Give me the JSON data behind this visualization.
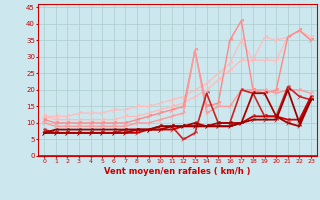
{
  "xlabel": "Vent moyen/en rafales ( km/h )",
  "bg_color": "#cce8ee",
  "grid_color": "#aacccc",
  "axis_color": "#cc0000",
  "label_color": "#cc0000",
  "xlim": [
    -0.5,
    23.5
  ],
  "ylim": [
    0,
    46
  ],
  "yticks": [
    0,
    5,
    10,
    15,
    20,
    25,
    30,
    35,
    40,
    45
  ],
  "xticks": [
    0,
    1,
    2,
    3,
    4,
    5,
    6,
    7,
    8,
    9,
    10,
    11,
    12,
    13,
    14,
    15,
    16,
    17,
    18,
    19,
    20,
    21,
    22,
    23
  ],
  "series": [
    {
      "x": [
        0,
        1,
        2,
        3,
        4,
        5,
        6,
        7,
        8,
        9,
        10,
        11,
        12,
        13,
        14,
        15,
        16,
        17,
        18,
        19,
        20,
        21,
        22,
        23
      ],
      "y": [
        12,
        12,
        12,
        13,
        13,
        13,
        14,
        14,
        15,
        15,
        16,
        17,
        18,
        20,
        22,
        25,
        28,
        35,
        29,
        36,
        35,
        36,
        38,
        36
      ],
      "color": "#ffbbbb",
      "lw": 0.9,
      "ms": 3.5
    },
    {
      "x": [
        0,
        1,
        2,
        3,
        4,
        5,
        6,
        7,
        8,
        9,
        10,
        11,
        12,
        13,
        14,
        15,
        16,
        17,
        18,
        19,
        20,
        21,
        22,
        23
      ],
      "y": [
        12,
        11,
        11,
        11,
        11,
        11,
        11,
        12,
        12,
        13,
        14,
        15,
        16,
        18,
        20,
        23,
        26,
        29,
        29,
        29,
        29,
        36,
        38,
        35
      ],
      "color": "#ffbbbb",
      "lw": 0.9,
      "ms": 3.5
    },
    {
      "x": [
        0,
        1,
        2,
        3,
        4,
        5,
        6,
        7,
        8,
        9,
        10,
        11,
        12,
        13,
        14,
        15,
        16,
        17,
        18,
        19,
        20,
        21,
        22,
        23
      ],
      "y": [
        11,
        10,
        10,
        10,
        10,
        10,
        10,
        10,
        11,
        12,
        13,
        14,
        15,
        32,
        15,
        16,
        35,
        41,
        20,
        19,
        20,
        36,
        38,
        35
      ],
      "color": "#ff8888",
      "lw": 1.0,
      "ms": 3.5
    },
    {
      "x": [
        0,
        1,
        2,
        3,
        4,
        5,
        6,
        7,
        8,
        9,
        10,
        11,
        12,
        13,
        14,
        15,
        16,
        17,
        18,
        19,
        20,
        21,
        22,
        23
      ],
      "y": [
        10,
        9,
        9,
        9,
        9,
        9,
        9,
        9,
        10,
        10,
        11,
        12,
        13,
        32,
        13,
        15,
        15,
        20,
        20,
        20,
        19,
        20,
        20,
        19
      ],
      "color": "#ff9999",
      "lw": 1.0,
      "ms": 3.0
    },
    {
      "x": [
        0,
        1,
        2,
        3,
        4,
        5,
        6,
        7,
        8,
        9,
        10,
        11,
        12,
        13,
        14,
        15,
        16,
        17,
        18,
        19,
        20,
        21,
        22,
        23
      ],
      "y": [
        8,
        7,
        7,
        7,
        7,
        7,
        7,
        8,
        8,
        8,
        9,
        9,
        5,
        7,
        19,
        10,
        10,
        20,
        19,
        12,
        12,
        21,
        18,
        17
      ],
      "color": "#cc2222",
      "lw": 1.2,
      "ms": 3.0
    },
    {
      "x": [
        0,
        1,
        2,
        3,
        4,
        5,
        6,
        7,
        8,
        9,
        10,
        11,
        12,
        13,
        14,
        15,
        16,
        17,
        18,
        19,
        20,
        21,
        22,
        23
      ],
      "y": [
        7,
        7,
        7,
        7,
        7,
        7,
        7,
        7,
        7,
        8,
        8,
        8,
        9,
        9,
        9,
        9,
        9,
        10,
        12,
        12,
        12,
        11,
        11,
        18
      ],
      "color": "#cc0000",
      "lw": 1.3,
      "ms": 3.0
    },
    {
      "x": [
        0,
        1,
        2,
        3,
        4,
        5,
        6,
        7,
        8,
        9,
        10,
        11,
        12,
        13,
        14,
        15,
        16,
        17,
        18,
        19,
        20,
        21,
        22,
        23
      ],
      "y": [
        7,
        7,
        7,
        7,
        7,
        7,
        7,
        7,
        8,
        8,
        8,
        9,
        9,
        10,
        9,
        10,
        10,
        10,
        19,
        19,
        12,
        10,
        9,
        17
      ],
      "color": "#aa0000",
      "lw": 1.3,
      "ms": 3.0
    },
    {
      "x": [
        0,
        1,
        2,
        3,
        4,
        5,
        6,
        7,
        8,
        9,
        10,
        11,
        12,
        13,
        14,
        15,
        16,
        17,
        18,
        19,
        20,
        21,
        22,
        23
      ],
      "y": [
        7,
        8,
        8,
        8,
        8,
        8,
        8,
        8,
        8,
        8,
        9,
        9,
        9,
        9,
        9,
        9,
        9,
        10,
        11,
        11,
        11,
        20,
        10,
        17
      ],
      "color": "#990000",
      "lw": 1.3,
      "ms": 3.0
    }
  ]
}
